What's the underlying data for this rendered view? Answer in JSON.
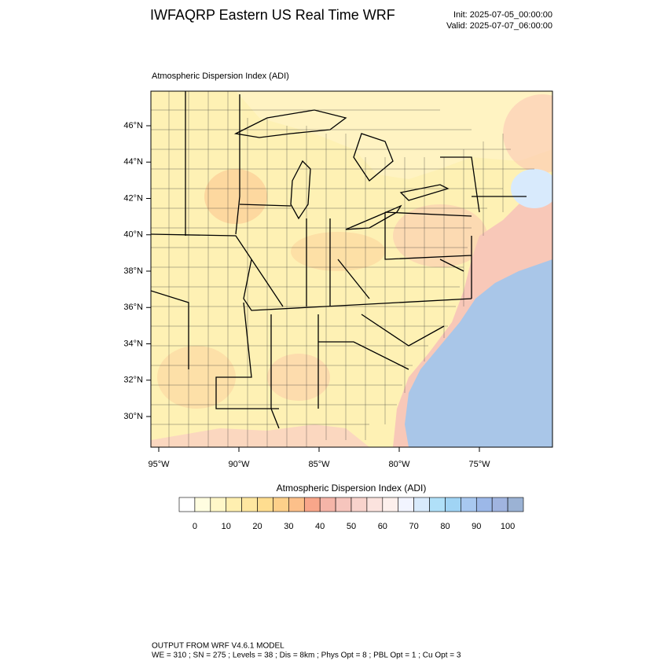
{
  "header": {
    "title": "IWFAQRP Eastern US Real Time WRF",
    "init": "Init: 2025-07-05_00:00:00",
    "valid": "Valid: 2025-07-07_06:00:00"
  },
  "map": {
    "label": "Atmospheric Dispersion Index   (ADI)",
    "lat_labels": [
      "46°N",
      "44°N",
      "42°N",
      "40°N",
      "38°N",
      "36°N",
      "34°N",
      "32°N",
      "30°N"
    ],
    "lon_labels": [
      "95°W",
      "90°W",
      "85°W",
      "80°W",
      "75°W"
    ]
  },
  "colorbar": {
    "title": "Atmospheric Dispersion Index  (ADI)",
    "ticks": [
      0,
      10,
      20,
      30,
      40,
      50,
      60,
      70,
      80,
      90,
      100
    ],
    "colors": [
      "#ffffff",
      "#fffde0",
      "#fff7c8",
      "#ffefb0",
      "#ffe7a0",
      "#fedd90",
      "#fdd08a",
      "#fcc08a",
      "#f8a68a",
      "#f5b5a8",
      "#f6c5bd",
      "#f8d3cc",
      "#fbe3de",
      "#fdf0ec",
      "#f2f4ff",
      "#d8eafc",
      "#b0e0f8",
      "#a0d4f4",
      "#a8c8f0",
      "#9cb8e8",
      "#a0b4e0",
      "#9bb2d4"
    ]
  },
  "footer": {
    "line1": "OUTPUT FROM WRF V4.6.1 MODEL",
    "line2": "WE = 310 ; SN = 275 ; Levels = 38 ; Dis = 8km ; Phys Opt = 8 ; PBL Opt = 1 ; Cu Opt = 3"
  }
}
